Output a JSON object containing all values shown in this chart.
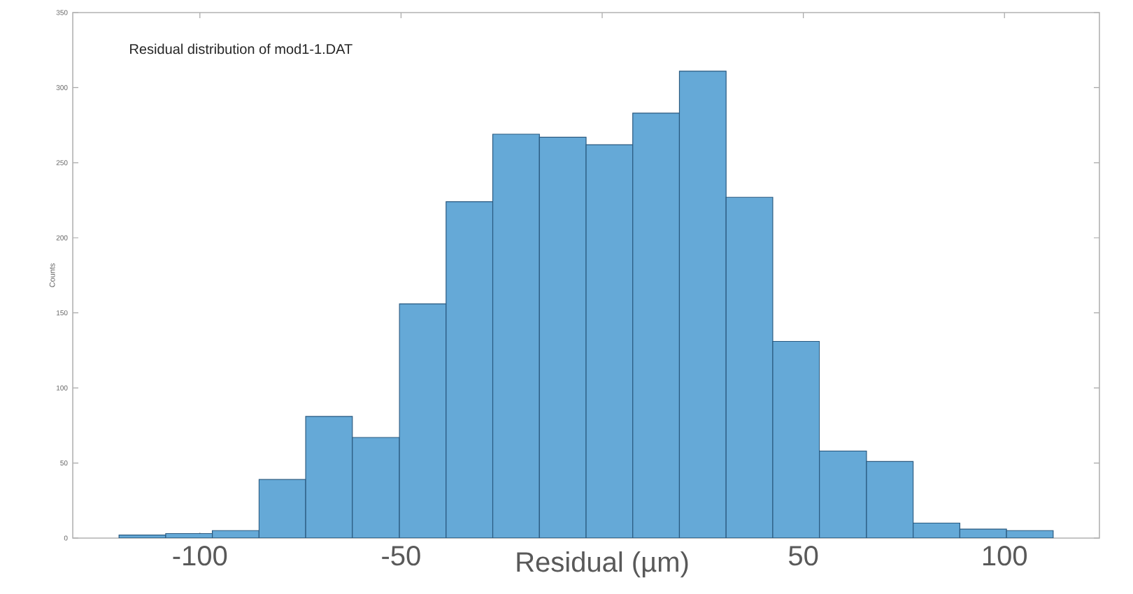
{
  "chart_data": {
    "type": "histogram",
    "title": "Residual distribution of mod1-1.DAT",
    "xlabel": "Residual (µm)",
    "ylabel": "Counts",
    "bins": [
      -120.1,
      -108.5,
      -96.9,
      -85.3,
      -73.7,
      -62.1,
      -50.4,
      -38.8,
      -27.2,
      -15.6,
      -4.0,
      7.6,
      19.2,
      30.8,
      42.4,
      54.0,
      65.7,
      77.3,
      88.9,
      100.5,
      112.1
    ],
    "values": [
      2,
      3,
      5,
      39,
      81,
      67,
      156,
      224,
      269,
      267,
      262,
      283,
      311,
      227,
      131,
      58,
      51,
      10,
      6,
      5
    ],
    "color": "#65a9d7",
    "xlim": [
      -131.6,
      123.6
    ],
    "xticks": [
      -100,
      -50,
      {
        "value": 0,
        "label": null
      },
      50,
      100
    ],
    "ylim": [
      0,
      350
    ],
    "yticks": [
      0,
      50,
      100,
      150,
      200,
      250,
      300,
      350
    ],
    "grid": false
  }
}
